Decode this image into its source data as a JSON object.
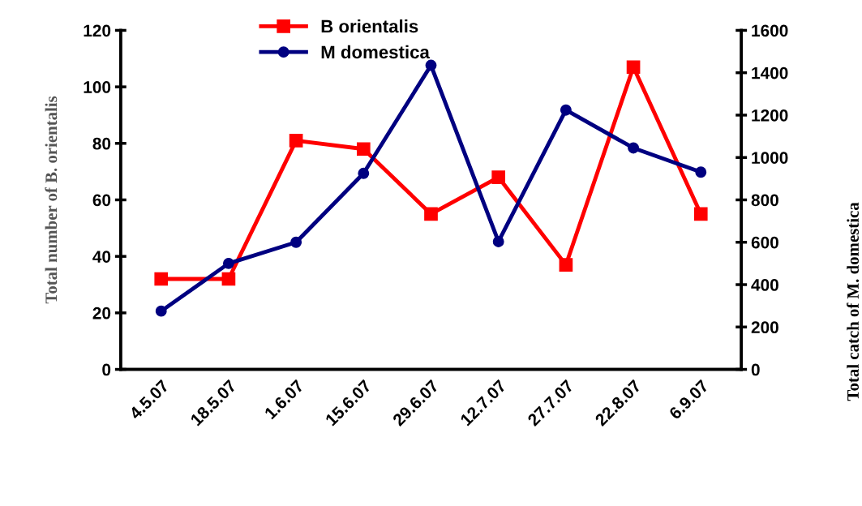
{
  "chart_data": {
    "type": "line",
    "categories": [
      "4.5.07",
      "18.5.07",
      "1.6.07",
      "15.6.07",
      "29.6.07",
      "12.7.07",
      "27.7.07",
      "22.8.07",
      "6.9.07"
    ],
    "series": [
      {
        "name": "B orientalis",
        "color": "#ff0000",
        "marker": "square",
        "values": [
          32,
          32,
          81,
          78,
          55,
          68,
          37,
          107,
          55
        ]
      },
      {
        "name": "M domestica",
        "color": "#000080",
        "marker": "circle",
        "axis": "y2",
        "values": [
          275,
          500,
          600,
          925,
          1435,
          603,
          1224,
          1045,
          931
        ]
      }
    ],
    "ylabel": "Total number of B. orientalis",
    "y2label": "Total catch of M. domestica",
    "ylim": [
      0,
      120
    ],
    "yticks": [
      0,
      20,
      40,
      60,
      80,
      100,
      120
    ],
    "y2lim": [
      0,
      1600
    ],
    "y2ticks": [
      0,
      200,
      400,
      600,
      800,
      1000,
      1200,
      1400,
      1600
    ],
    "legend": "top left",
    "grid": false,
    "line_style": "solid"
  }
}
